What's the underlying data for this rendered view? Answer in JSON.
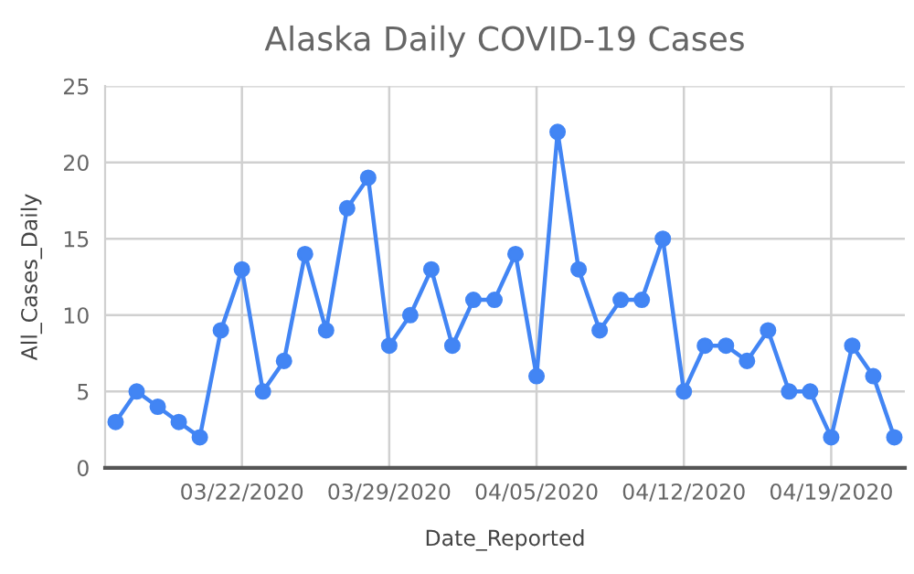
{
  "chart_data": {
    "type": "line",
    "title": "Alaska Daily COVID-19 Cases",
    "xlabel": "Date_Reported",
    "ylabel": "All_Cases_Daily",
    "x": [
      "2020-03-16",
      "2020-03-17",
      "2020-03-18",
      "2020-03-19",
      "2020-03-20",
      "2020-03-21",
      "2020-03-22",
      "2020-03-23",
      "2020-03-24",
      "2020-03-25",
      "2020-03-26",
      "2020-03-27",
      "2020-03-28",
      "2020-03-29",
      "2020-03-30",
      "2020-03-31",
      "2020-04-01",
      "2020-04-02",
      "2020-04-03",
      "2020-04-04",
      "2020-04-05",
      "2020-04-06",
      "2020-04-07",
      "2020-04-08",
      "2020-04-09",
      "2020-04-10",
      "2020-04-11",
      "2020-04-12",
      "2020-04-13",
      "2020-04-14",
      "2020-04-15",
      "2020-04-16",
      "2020-04-17",
      "2020-04-18",
      "2020-04-19",
      "2020-04-20",
      "2020-04-21",
      "2020-04-22"
    ],
    "series": [
      {
        "color": "#4285f4",
        "values": [
          3,
          5,
          4,
          3,
          2,
          9,
          13,
          5,
          7,
          14,
          9,
          17,
          19,
          8,
          10,
          13,
          8,
          11,
          11,
          14,
          6,
          22,
          13,
          9,
          11,
          11,
          15,
          5,
          8,
          8,
          7,
          9,
          5,
          5,
          2,
          8,
          6,
          2
        ]
      }
    ],
    "xlim": [
      "2020-03-15T12:00",
      "2020-04-22T12:00"
    ],
    "xticks": [
      {
        "value": "2020-03-22",
        "label": "03/22/2020"
      },
      {
        "value": "2020-03-29",
        "label": "03/29/2020"
      },
      {
        "value": "2020-04-05",
        "label": "04/05/2020"
      },
      {
        "value": "2020-04-12",
        "label": "04/12/2020"
      },
      {
        "value": "2020-04-19",
        "label": "04/19/2020"
      }
    ],
    "ylim": [
      0,
      25
    ],
    "yticks": [
      0,
      5,
      10,
      15,
      20,
      25
    ],
    "grid": true,
    "marker": "circle",
    "line_style": "solid",
    "legend": false
  }
}
